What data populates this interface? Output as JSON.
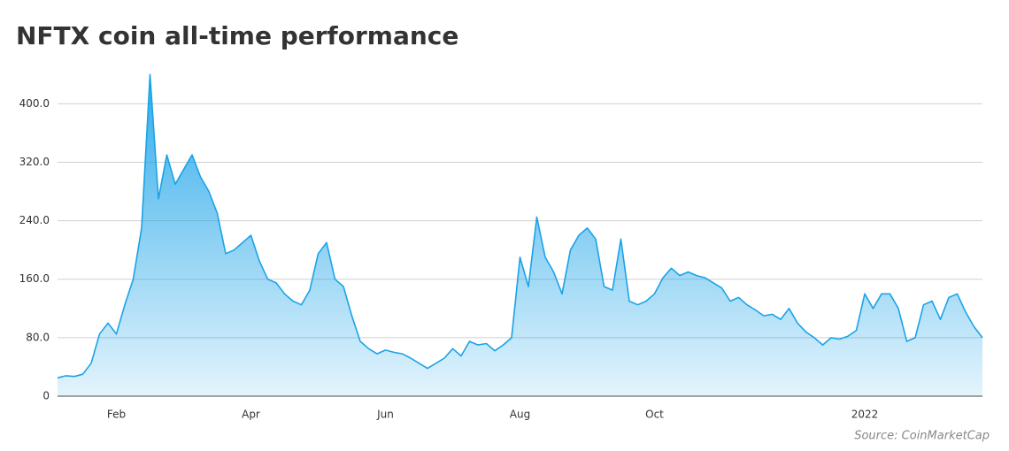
{
  "chart_data": {
    "type": "area",
    "title": "NFTX coin all-time performance",
    "source": "Source: CoinMarketCap",
    "categories": [
      null,
      null,
      null,
      null,
      null,
      null,
      null,
      "Feb",
      null,
      null,
      null,
      null,
      null,
      null,
      null,
      null,
      null,
      null,
      null,
      null,
      null,
      null,
      null,
      "Apr",
      null,
      null,
      null,
      null,
      null,
      null,
      null,
      null,
      null,
      null,
      null,
      null,
      null,
      null,
      null,
      "Jun",
      null,
      null,
      null,
      null,
      null,
      null,
      null,
      null,
      null,
      null,
      null,
      null,
      null,
      null,
      null,
      "Aug",
      null,
      null,
      null,
      null,
      null,
      null,
      null,
      null,
      null,
      null,
      null,
      null,
      null,
      null,
      null,
      "Oct",
      null,
      null,
      null,
      null,
      null,
      null,
      null,
      null,
      null,
      null,
      null,
      null,
      null,
      null,
      null,
      null,
      null,
      null,
      null,
      null,
      null,
      null,
      null,
      null,
      "2022",
      null,
      null,
      null,
      null,
      null,
      null,
      null,
      null,
      null,
      null,
      null,
      null,
      null,
      null
    ],
    "values": [
      25,
      28,
      27,
      30,
      45,
      85,
      100,
      85,
      125,
      160,
      230,
      440,
      270,
      330,
      290,
      310,
      330,
      300,
      280,
      250,
      195,
      200,
      210,
      220,
      185,
      160,
      155,
      140,
      130,
      125,
      145,
      195,
      210,
      160,
      150,
      110,
      75,
      65,
      58,
      63,
      60,
      58,
      52,
      45,
      38,
      45,
      52,
      65,
      55,
      75,
      70,
      72,
      62,
      70,
      80,
      190,
      150,
      245,
      190,
      170,
      140,
      200,
      220,
      230,
      215,
      150,
      145,
      215,
      130,
      125,
      130,
      140,
      162,
      175,
      165,
      170,
      165,
      162,
      155,
      148,
      130,
      135,
      125,
      118,
      110,
      112,
      105,
      120,
      100,
      88,
      80,
      70,
      80,
      78,
      82,
      90,
      140,
      120,
      140,
      140,
      120,
      75,
      80,
      125,
      130,
      105,
      135,
      140,
      115,
      95,
      80
    ],
    "color": "#1aa3e8",
    "ylim": [
      0,
      450
    ],
    "yticks": [
      0,
      {
        "value": 80,
        "label": "80.0"
      },
      {
        "value": 160,
        "label": "160.0"
      },
      {
        "value": 240,
        "label": "240.0"
      },
      {
        "value": 320,
        "label": "320.0"
      },
      {
        "value": 400,
        "label": "400.0"
      }
    ],
    "grid": true
  }
}
